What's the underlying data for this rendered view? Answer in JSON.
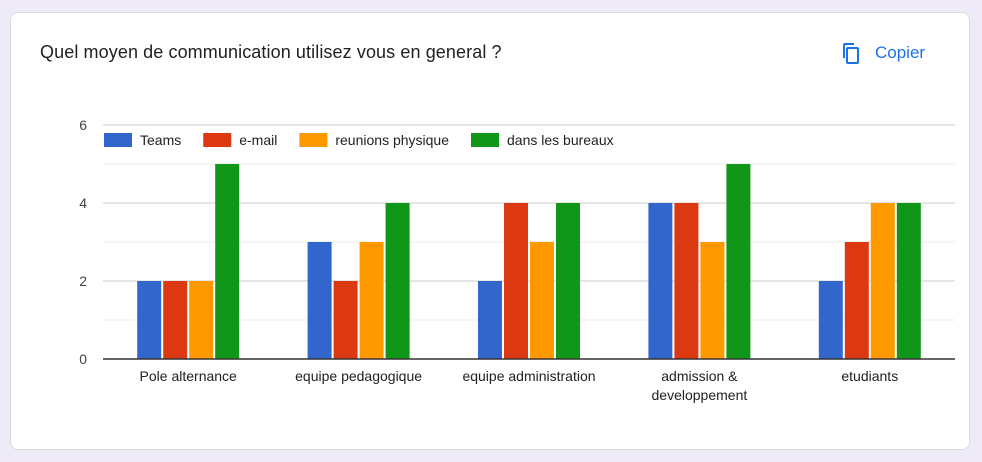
{
  "question": {
    "title": "Quel moyen de communication utilisez vous en general ?"
  },
  "copy_button": {
    "label": "Copier",
    "icon": "copy-icon",
    "color": "#1a73e8"
  },
  "chart_data": {
    "type": "bar",
    "title": "",
    "xlabel": "",
    "ylabel": "",
    "ylim": [
      0,
      6
    ],
    "yticks": [
      0,
      2,
      4,
      6
    ],
    "grid": true,
    "legend_position": "top-left",
    "categories": [
      [
        "Pole alternance"
      ],
      [
        "equipe pedagogique"
      ],
      [
        "equipe administration"
      ],
      [
        "admission &",
        "developpement"
      ],
      [
        "etudiants"
      ]
    ],
    "series": [
      {
        "name": "Teams",
        "color": "#3366cc",
        "values": [
          2,
          3,
          2,
          4,
          2
        ]
      },
      {
        "name": "e-mail",
        "color": "#dc3912",
        "values": [
          2,
          2,
          4,
          4,
          3
        ]
      },
      {
        "name": "reunions physique",
        "color": "#ff9900",
        "values": [
          2,
          3,
          3,
          3,
          4
        ]
      },
      {
        "name": "dans les bureaux",
        "color": "#109618",
        "values": [
          5,
          4,
          4,
          5,
          4
        ]
      }
    ]
  }
}
